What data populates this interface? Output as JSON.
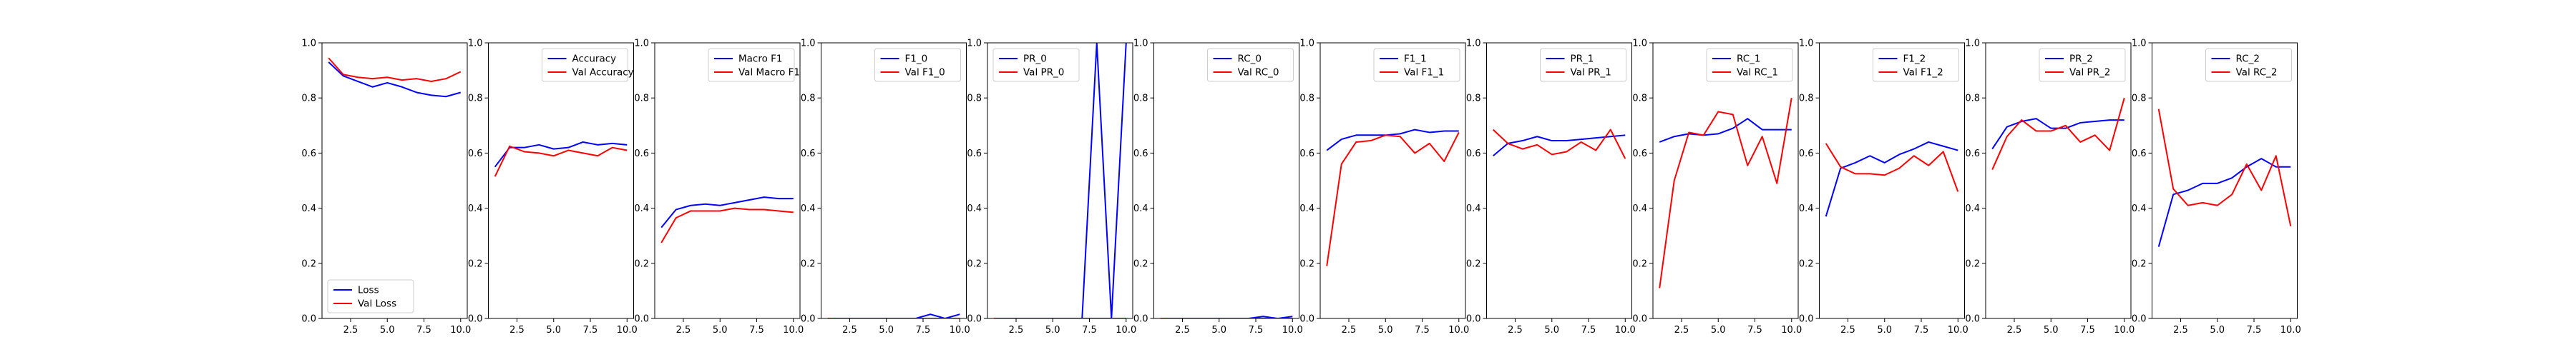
{
  "figure": {
    "background": "#ffffff",
    "epochs": [
      1,
      2,
      3,
      4,
      5,
      6,
      7,
      8,
      9,
      10
    ]
  },
  "chart_data": [
    {
      "type": "line",
      "title": "",
      "xlabel": "",
      "ylabel": "",
      "xlim": [
        0.55,
        10.45
      ],
      "ylim": [
        0,
        1
      ],
      "xticks": [
        "2.5",
        "5.0",
        "7.5",
        "10.0"
      ],
      "yticks": [
        "0.0",
        "0.2",
        "0.4",
        "0.6",
        "0.8",
        "1.0"
      ],
      "grid": false,
      "legend_loc": "lower-left",
      "series": [
        {
          "name": "Loss",
          "color": "#0000ff",
          "values": [
            0.93,
            0.88,
            0.86,
            0.84,
            0.855,
            0.84,
            0.82,
            0.81,
            0.805,
            0.82
          ]
        },
        {
          "name": "Val Loss",
          "color": "#ff0000",
          "values": [
            0.945,
            0.885,
            0.875,
            0.87,
            0.875,
            0.865,
            0.87,
            0.86,
            0.87,
            0.895
          ]
        }
      ]
    },
    {
      "type": "line",
      "title": "",
      "xlabel": "",
      "ylabel": "",
      "xlim": [
        0.55,
        10.45
      ],
      "ylim": [
        0,
        1
      ],
      "xticks": [
        "2.5",
        "5.0",
        "7.5",
        "10.0"
      ],
      "yticks": [
        "0.0",
        "0.2",
        "0.4",
        "0.6",
        "0.8",
        "1.0"
      ],
      "grid": false,
      "legend_loc": "top-right",
      "series": [
        {
          "name": "Accuracy",
          "color": "#0000ff",
          "values": [
            0.55,
            0.62,
            0.62,
            0.63,
            0.615,
            0.62,
            0.64,
            0.63,
            0.635,
            0.63
          ]
        },
        {
          "name": "Val Accuracy",
          "color": "#ff0000",
          "values": [
            0.515,
            0.625,
            0.605,
            0.6,
            0.59,
            0.61,
            0.6,
            0.59,
            0.62,
            0.61
          ]
        }
      ]
    },
    {
      "type": "line",
      "title": "",
      "xlabel": "",
      "ylabel": "",
      "xlim": [
        0.55,
        10.45
      ],
      "ylim": [
        0,
        1
      ],
      "xticks": [
        "2.5",
        "5.0",
        "7.5",
        "10.0"
      ],
      "yticks": [
        "0.0",
        "0.2",
        "0.4",
        "0.6",
        "0.8",
        "1.0"
      ],
      "grid": false,
      "legend_loc": "top-right",
      "series": [
        {
          "name": "Macro F1",
          "color": "#0000ff",
          "values": [
            0.33,
            0.395,
            0.41,
            0.415,
            0.41,
            0.42,
            0.43,
            0.44,
            0.435,
            0.435
          ]
        },
        {
          "name": "Val Macro F1",
          "color": "#ff0000",
          "values": [
            0.275,
            0.365,
            0.39,
            0.39,
            0.39,
            0.4,
            0.395,
            0.395,
            0.39,
            0.385
          ]
        }
      ]
    },
    {
      "type": "line",
      "title": "",
      "xlabel": "",
      "ylabel": "",
      "xlim": [
        0.55,
        10.45
      ],
      "ylim": [
        0,
        1
      ],
      "xticks": [
        "2.5",
        "5.0",
        "7.5",
        "10.0"
      ],
      "yticks": [
        "0.0",
        "0.2",
        "0.4",
        "0.6",
        "0.8",
        "1.0"
      ],
      "grid": false,
      "legend_loc": "top-right",
      "series": [
        {
          "name": "F1_0",
          "color": "#0000ff",
          "values": [
            0,
            0,
            0,
            0,
            0,
            0,
            0,
            0.015,
            0,
            0.015
          ]
        },
        {
          "name": "Val F1_0",
          "color": "#ff0000",
          "values": [
            0,
            0,
            0,
            0,
            0,
            0,
            0,
            0,
            0,
            0
          ]
        }
      ]
    },
    {
      "type": "line",
      "title": "",
      "xlabel": "",
      "ylabel": "",
      "xlim": [
        0.55,
        10.45
      ],
      "ylim": [
        0,
        1
      ],
      "xticks": [
        "2.5",
        "5.0",
        "7.5",
        "10.0"
      ],
      "yticks": [
        "0.0",
        "0.2",
        "0.4",
        "0.6",
        "0.8",
        "1.0"
      ],
      "grid": false,
      "legend_loc": "top-left",
      "series": [
        {
          "name": "PR_0",
          "color": "#0000ff",
          "values": [
            0,
            0,
            0,
            0,
            0,
            0,
            0,
            1,
            0,
            1
          ]
        },
        {
          "name": "Val PR_0",
          "color": "#ff0000",
          "values": [
            0,
            0,
            0,
            0,
            0,
            0,
            0,
            0,
            0,
            0
          ]
        }
      ]
    },
    {
      "type": "line",
      "title": "",
      "xlabel": "",
      "ylabel": "",
      "xlim": [
        0.55,
        10.45
      ],
      "ylim": [
        0,
        1
      ],
      "xticks": [
        "2.5",
        "5.0",
        "7.5",
        "10.0"
      ],
      "yticks": [
        "0.0",
        "0.2",
        "0.4",
        "0.6",
        "0.8",
        "1.0"
      ],
      "grid": false,
      "legend_loc": "top-right",
      "series": [
        {
          "name": "RC_0",
          "color": "#0000ff",
          "values": [
            0,
            0,
            0,
            0,
            0,
            0,
            0,
            0.007,
            0,
            0.007
          ]
        },
        {
          "name": "Val RC_0",
          "color": "#ff0000",
          "values": [
            0,
            0,
            0,
            0,
            0,
            0,
            0,
            0,
            0,
            0
          ]
        }
      ]
    },
    {
      "type": "line",
      "title": "",
      "xlabel": "",
      "ylabel": "",
      "xlim": [
        0.55,
        10.45
      ],
      "ylim": [
        0,
        1
      ],
      "xticks": [
        "2.5",
        "5.0",
        "7.5",
        "10.0"
      ],
      "yticks": [
        "0.0",
        "0.2",
        "0.4",
        "0.6",
        "0.8",
        "1.0"
      ],
      "grid": false,
      "legend_loc": "top-right",
      "series": [
        {
          "name": "F1_1",
          "color": "#0000ff",
          "values": [
            0.61,
            0.65,
            0.665,
            0.665,
            0.665,
            0.67,
            0.685,
            0.675,
            0.68,
            0.68
          ]
        },
        {
          "name": "Val F1_1",
          "color": "#ff0000",
          "values": [
            0.19,
            0.56,
            0.64,
            0.645,
            0.665,
            0.66,
            0.6,
            0.635,
            0.57,
            0.675
          ]
        }
      ]
    },
    {
      "type": "line",
      "title": "",
      "xlabel": "",
      "ylabel": "",
      "xlim": [
        0.55,
        10.45
      ],
      "ylim": [
        0,
        1
      ],
      "xticks": [
        "2.5",
        "5.0",
        "7.5",
        "10.0"
      ],
      "yticks": [
        "0.0",
        "0.2",
        "0.4",
        "0.6",
        "0.8",
        "1.0"
      ],
      "grid": false,
      "legend_loc": "top-right",
      "series": [
        {
          "name": "PR_1",
          "color": "#0000ff",
          "values": [
            0.59,
            0.635,
            0.645,
            0.66,
            0.645,
            0.645,
            0.65,
            0.655,
            0.66,
            0.665
          ]
        },
        {
          "name": "Val PR_1",
          "color": "#ff0000",
          "values": [
            0.685,
            0.635,
            0.615,
            0.63,
            0.595,
            0.605,
            0.64,
            0.61,
            0.685,
            0.58
          ]
        }
      ]
    },
    {
      "type": "line",
      "title": "",
      "xlabel": "",
      "ylabel": "",
      "xlim": [
        0.55,
        10.45
      ],
      "ylim": [
        0,
        1
      ],
      "xticks": [
        "2.5",
        "5.0",
        "7.5",
        "10.0"
      ],
      "yticks": [
        "0.0",
        "0.2",
        "0.4",
        "0.6",
        "0.8",
        "1.0"
      ],
      "grid": false,
      "legend_loc": "top-right",
      "series": [
        {
          "name": "RC_1",
          "color": "#0000ff",
          "values": [
            0.64,
            0.66,
            0.67,
            0.665,
            0.67,
            0.69,
            0.725,
            0.685,
            0.685,
            0.685
          ]
        },
        {
          "name": "Val RC_1",
          "color": "#ff0000",
          "values": [
            0.11,
            0.5,
            0.675,
            0.665,
            0.75,
            0.74,
            0.555,
            0.66,
            0.49,
            0.8
          ]
        }
      ]
    },
    {
      "type": "line",
      "title": "",
      "xlabel": "",
      "ylabel": "",
      "xlim": [
        0.55,
        10.45
      ],
      "ylim": [
        0,
        1
      ],
      "xticks": [
        "2.5",
        "5.0",
        "7.5",
        "10.0"
      ],
      "yticks": [
        "0.0",
        "0.2",
        "0.4",
        "0.6",
        "0.8",
        "1.0"
      ],
      "grid": false,
      "legend_loc": "top-right",
      "series": [
        {
          "name": "F1_2",
          "color": "#0000ff",
          "values": [
            0.37,
            0.545,
            0.565,
            0.59,
            0.565,
            0.595,
            0.615,
            0.64,
            0.625,
            0.61
          ]
        },
        {
          "name": "Val F1_2",
          "color": "#ff0000",
          "values": [
            0.635,
            0.55,
            0.525,
            0.525,
            0.52,
            0.545,
            0.59,
            0.555,
            0.605,
            0.46
          ]
        }
      ]
    },
    {
      "type": "line",
      "title": "",
      "xlabel": "",
      "ylabel": "",
      "xlim": [
        0.55,
        10.45
      ],
      "ylim": [
        0,
        1
      ],
      "xticks": [
        "2.5",
        "5.0",
        "7.5",
        "10.0"
      ],
      "yticks": [
        "0.0",
        "0.2",
        "0.4",
        "0.6",
        "0.8",
        "1.0"
      ],
      "grid": false,
      "legend_loc": "top-right",
      "series": [
        {
          "name": "PR_2",
          "color": "#0000ff",
          "values": [
            0.615,
            0.695,
            0.715,
            0.725,
            0.69,
            0.69,
            0.71,
            0.715,
            0.72,
            0.72
          ]
        },
        {
          "name": "Val PR_2",
          "color": "#ff0000",
          "values": [
            0.54,
            0.66,
            0.72,
            0.68,
            0.68,
            0.7,
            0.64,
            0.665,
            0.61,
            0.8
          ]
        }
      ]
    },
    {
      "type": "line",
      "title": "",
      "xlabel": "",
      "ylabel": "",
      "xlim": [
        0.55,
        10.45
      ],
      "ylim": [
        0,
        1
      ],
      "xticks": [
        "2.5",
        "5.0",
        "7.5",
        "10.0"
      ],
      "yticks": [
        "0.0",
        "0.2",
        "0.4",
        "0.6",
        "0.8",
        "1.0"
      ],
      "grid": false,
      "legend_loc": "top-right",
      "series": [
        {
          "name": "RC_2",
          "color": "#0000ff",
          "values": [
            0.26,
            0.45,
            0.465,
            0.49,
            0.49,
            0.51,
            0.55,
            0.58,
            0.55,
            0.55
          ]
        },
        {
          "name": "Val RC_2",
          "color": "#ff0000",
          "values": [
            0.76,
            0.47,
            0.41,
            0.42,
            0.41,
            0.45,
            0.56,
            0.465,
            0.59,
            0.335
          ]
        }
      ]
    }
  ]
}
